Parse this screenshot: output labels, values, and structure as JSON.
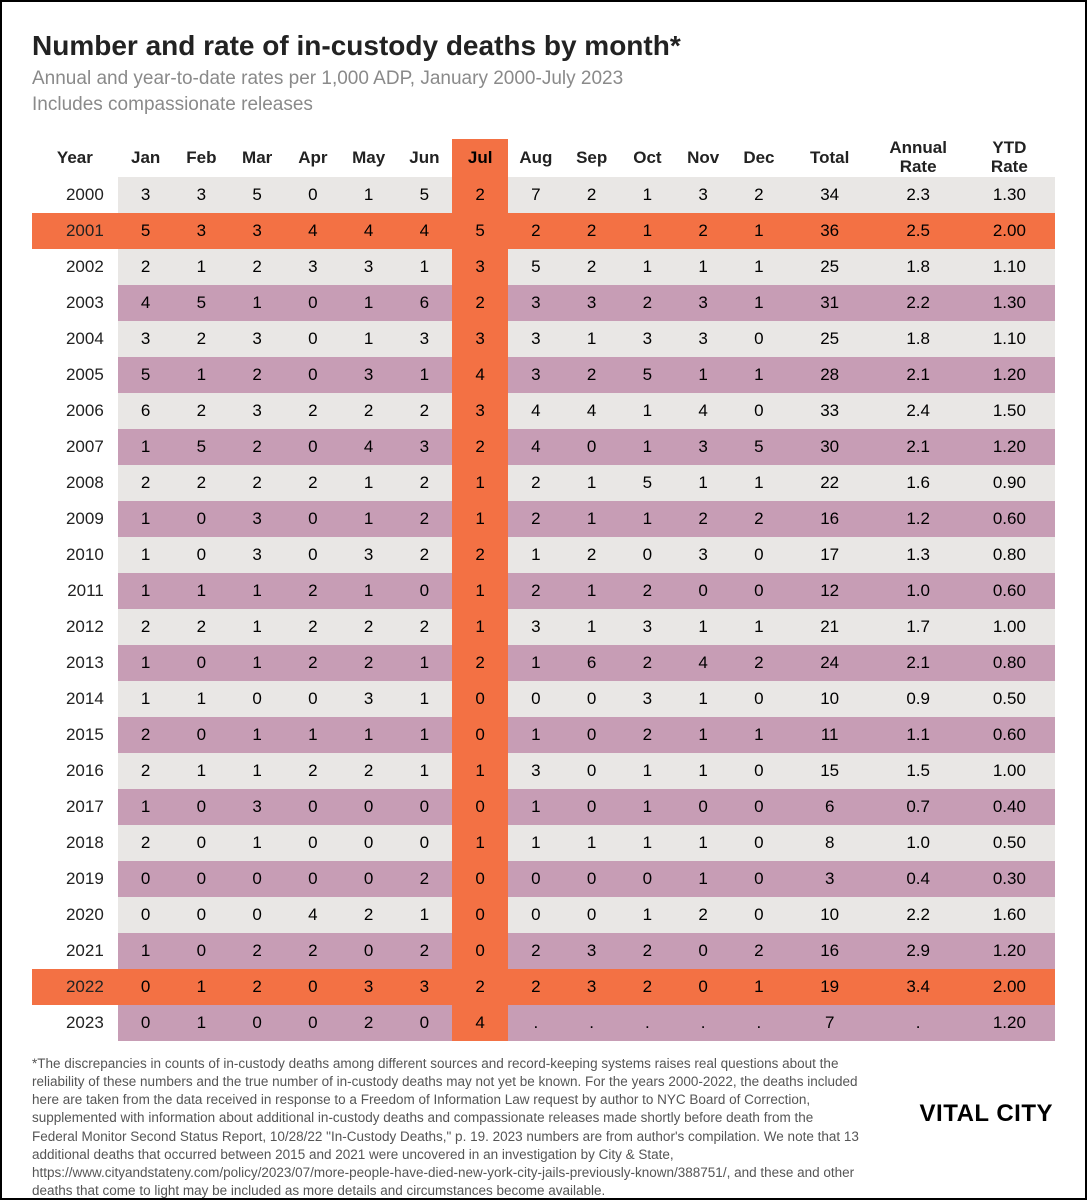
{
  "title": "Number and rate of in-custody deaths by month*",
  "subtitle_line1": "Annual and year-to-date rates per 1,000 ADP, January 2000-July 2023",
  "subtitle_line2": "Includes compassionate releases",
  "columns": [
    "Year",
    "Jan",
    "Feb",
    "Mar",
    "Apr",
    "May",
    "Jun",
    "Jul",
    "Aug",
    "Sep",
    "Oct",
    "Nov",
    "Dec",
    "Total",
    "Annual\nRate",
    "YTD\nRate"
  ],
  "highlight_column_index": 7,
  "colors": {
    "row_light": "#e9e7e5",
    "row_mauve": "#c79db5",
    "highlight_orange": "#f37144",
    "highlight_orange_header": "#f37144",
    "text": "#222222"
  },
  "rows": [
    {
      "year": "2000",
      "vals": [
        "3",
        "3",
        "5",
        "0",
        "1",
        "5",
        "2",
        "7",
        "2",
        "1",
        "3",
        "2",
        "34",
        "2.3",
        "1.30"
      ],
      "highlight": false
    },
    {
      "year": "2001",
      "vals": [
        "5",
        "3",
        "3",
        "4",
        "4",
        "4",
        "5",
        "2",
        "2",
        "1",
        "2",
        "1",
        "36",
        "2.5",
        "2.00"
      ],
      "highlight": true
    },
    {
      "year": "2002",
      "vals": [
        "2",
        "1",
        "2",
        "3",
        "3",
        "1",
        "3",
        "5",
        "2",
        "1",
        "1",
        "1",
        "25",
        "1.8",
        "1.10"
      ],
      "highlight": false
    },
    {
      "year": "2003",
      "vals": [
        "4",
        "5",
        "1",
        "0",
        "1",
        "6",
        "2",
        "3",
        "3",
        "2",
        "3",
        "1",
        "31",
        "2.2",
        "1.30"
      ],
      "highlight": false
    },
    {
      "year": "2004",
      "vals": [
        "3",
        "2",
        "3",
        "0",
        "1",
        "3",
        "3",
        "3",
        "1",
        "3",
        "3",
        "0",
        "25",
        "1.8",
        "1.10"
      ],
      "highlight": false
    },
    {
      "year": "2005",
      "vals": [
        "5",
        "1",
        "2",
        "0",
        "3",
        "1",
        "4",
        "3",
        "2",
        "5",
        "1",
        "1",
        "28",
        "2.1",
        "1.20"
      ],
      "highlight": false
    },
    {
      "year": "2006",
      "vals": [
        "6",
        "2",
        "3",
        "2",
        "2",
        "2",
        "3",
        "4",
        "4",
        "1",
        "4",
        "0",
        "33",
        "2.4",
        "1.50"
      ],
      "highlight": false
    },
    {
      "year": "2007",
      "vals": [
        "1",
        "5",
        "2",
        "0",
        "4",
        "3",
        "2",
        "4",
        "0",
        "1",
        "3",
        "5",
        "30",
        "2.1",
        "1.20"
      ],
      "highlight": false
    },
    {
      "year": "2008",
      "vals": [
        "2",
        "2",
        "2",
        "2",
        "1",
        "2",
        "1",
        "2",
        "1",
        "5",
        "1",
        "1",
        "22",
        "1.6",
        "0.90"
      ],
      "highlight": false
    },
    {
      "year": "2009",
      "vals": [
        "1",
        "0",
        "3",
        "0",
        "1",
        "2",
        "1",
        "2",
        "1",
        "1",
        "2",
        "2",
        "16",
        "1.2",
        "0.60"
      ],
      "highlight": false
    },
    {
      "year": "2010",
      "vals": [
        "1",
        "0",
        "3",
        "0",
        "3",
        "2",
        "2",
        "1",
        "2",
        "0",
        "3",
        "0",
        "17",
        "1.3",
        "0.80"
      ],
      "highlight": false
    },
    {
      "year": "2011",
      "vals": [
        "1",
        "1",
        "1",
        "2",
        "1",
        "0",
        "1",
        "2",
        "1",
        "2",
        "0",
        "0",
        "12",
        "1.0",
        "0.60"
      ],
      "highlight": false
    },
    {
      "year": "2012",
      "vals": [
        "2",
        "2",
        "1",
        "2",
        "2",
        "2",
        "1",
        "3",
        "1",
        "3",
        "1",
        "1",
        "21",
        "1.7",
        "1.00"
      ],
      "highlight": false
    },
    {
      "year": "2013",
      "vals": [
        "1",
        "0",
        "1",
        "2",
        "2",
        "1",
        "2",
        "1",
        "6",
        "2",
        "4",
        "2",
        "24",
        "2.1",
        "0.80"
      ],
      "highlight": false
    },
    {
      "year": "2014",
      "vals": [
        "1",
        "1",
        "0",
        "0",
        "3",
        "1",
        "0",
        "0",
        "0",
        "3",
        "1",
        "0",
        "10",
        "0.9",
        "0.50"
      ],
      "highlight": false
    },
    {
      "year": "2015",
      "vals": [
        "2",
        "0",
        "1",
        "1",
        "1",
        "1",
        "0",
        "1",
        "0",
        "2",
        "1",
        "1",
        "11",
        "1.1",
        "0.60"
      ],
      "highlight": false
    },
    {
      "year": "2016",
      "vals": [
        "2",
        "1",
        "1",
        "2",
        "2",
        "1",
        "1",
        "3",
        "0",
        "1",
        "1",
        "0",
        "15",
        "1.5",
        "1.00"
      ],
      "highlight": false
    },
    {
      "year": "2017",
      "vals": [
        "1",
        "0",
        "3",
        "0",
        "0",
        "0",
        "0",
        "1",
        "0",
        "1",
        "0",
        "0",
        "6",
        "0.7",
        "0.40"
      ],
      "highlight": false
    },
    {
      "year": "2018",
      "vals": [
        "2",
        "0",
        "1",
        "0",
        "0",
        "0",
        "1",
        "1",
        "1",
        "1",
        "1",
        "0",
        "8",
        "1.0",
        "0.50"
      ],
      "highlight": false
    },
    {
      "year": "2019",
      "vals": [
        "0",
        "0",
        "0",
        "0",
        "0",
        "2",
        "0",
        "0",
        "0",
        "0",
        "1",
        "0",
        "3",
        "0.4",
        "0.30"
      ],
      "highlight": false
    },
    {
      "year": "2020",
      "vals": [
        "0",
        "0",
        "0",
        "4",
        "2",
        "1",
        "0",
        "0",
        "0",
        "1",
        "2",
        "0",
        "10",
        "2.2",
        "1.60"
      ],
      "highlight": false
    },
    {
      "year": "2021",
      "vals": [
        "1",
        "0",
        "2",
        "2",
        "0",
        "2",
        "0",
        "2",
        "3",
        "2",
        "0",
        "2",
        "16",
        "2.9",
        "1.20"
      ],
      "highlight": false
    },
    {
      "year": "2022",
      "vals": [
        "0",
        "1",
        "2",
        "0",
        "3",
        "3",
        "2",
        "2",
        "3",
        "2",
        "0",
        "1",
        "19",
        "3.4",
        "2.00"
      ],
      "highlight": true
    },
    {
      "year": "2023",
      "vals": [
        "0",
        "1",
        "0",
        "0",
        "2",
        "0",
        "4",
        ".",
        ".",
        ".",
        ".",
        ".",
        "7",
        ".",
        "1.20"
      ],
      "highlight": false
    }
  ],
  "footnote": "*The discrepancies in counts of in-custody deaths among different sources and record-keeping systems raises real questions about the reliability of these numbers and the true number of in-custody deaths may not yet be known. For the years 2000-2022, the deaths included here are taken from the data received in response to a Freedom of Information Law request by author to NYC Board of Correction, supplemented with information about additional in-custody deaths and compassionate releases made shortly before death from the Federal Monitor Second Status Report, 10/28/22 \"In-Custody Deaths,\" p. 19. 2023 numbers are from author's compilation. We note that 13 additional deaths that occurred between 2015 and 2021 were uncovered in an investigation by City & State, https://www.cityandstateny.com/policy/2023/07/more-people-have-died-new-york-city-jails-previously-known/388751/, and these and other deaths that come to light may be included as more details and circumstances become available.",
  "brand": "VITAL CITY"
}
